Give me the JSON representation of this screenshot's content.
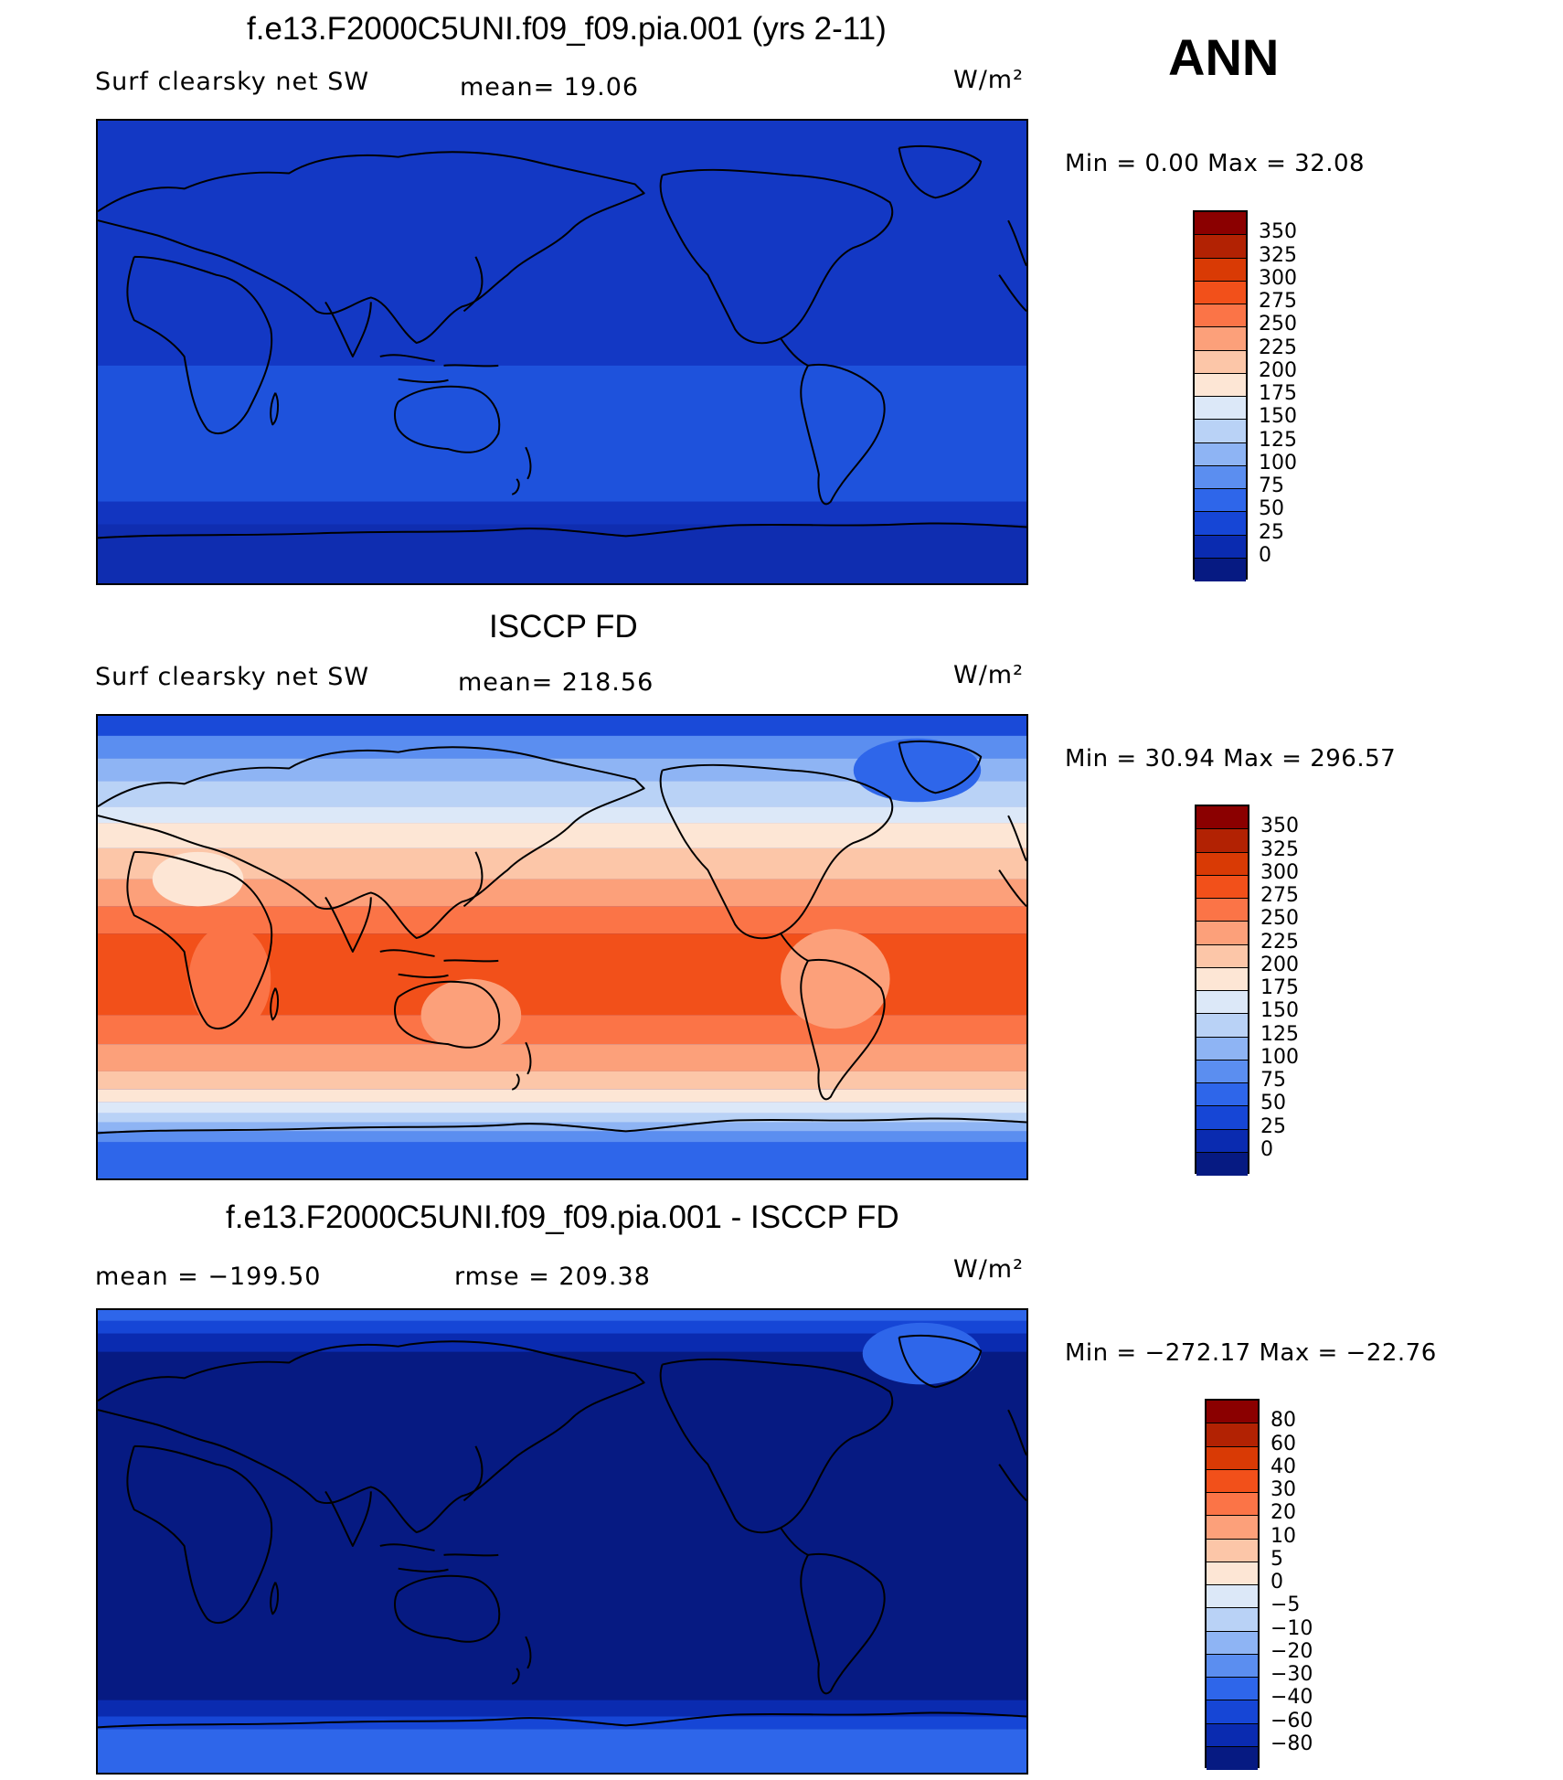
{
  "season": "ANN",
  "panels": [
    {
      "title": "f.e13.F2000C5UNI.f09_f09.pia.001 (yrs 2-11)",
      "left_label": "Surf clearsky net SW",
      "mid_label": "mean=  19.06",
      "units": "W/m²",
      "minmax": "Min =    0.00  Max =   32.08",
      "colorbar_ticks": [
        "350",
        "325",
        "300",
        "275",
        "250",
        "225",
        "200",
        "175",
        "150",
        "125",
        "100",
        "75",
        "50",
        "25",
        "0"
      ],
      "field": "model"
    },
    {
      "title": "ISCCP FD",
      "left_label": "Surf clearsky net SW",
      "mid_label": "mean= 218.56",
      "units": "W/m²",
      "minmax": "Min =   30.94  Max =  296.57",
      "colorbar_ticks": [
        "350",
        "325",
        "300",
        "275",
        "250",
        "225",
        "200",
        "175",
        "150",
        "125",
        "100",
        "75",
        "50",
        "25",
        "0"
      ],
      "field": "obs"
    },
    {
      "title": "f.e13.F2000C5UNI.f09_f09.pia.001 - ISCCP FD",
      "left_label": "mean = −199.50",
      "mid_label": "rmse = 209.38",
      "units": "W/m²",
      "minmax": "Min = −272.17  Max = −22.76",
      "colorbar_ticks": [
        "80",
        "60",
        "40",
        "30",
        "20",
        "10",
        "5",
        "0",
        "−5",
        "−10",
        "−20",
        "−30",
        "−40",
        "−60",
        "−80"
      ],
      "field": "diff"
    }
  ],
  "colors": {
    "scale": [
      "#8b0000",
      "#b22203",
      "#d93a05",
      "#f2501a",
      "#fb7447",
      "#fca07a",
      "#fcc6a8",
      "#fde6d5",
      "#dce8f8",
      "#b9d2f6",
      "#8eb4f4",
      "#5b8ef0",
      "#2e66ea",
      "#1646d6",
      "#0a2bb0",
      "#061a82"
    ],
    "model_ocean_north": "#1a3fc8",
    "model_band": "#1e4fd8",
    "model_south": "#1030b8"
  }
}
